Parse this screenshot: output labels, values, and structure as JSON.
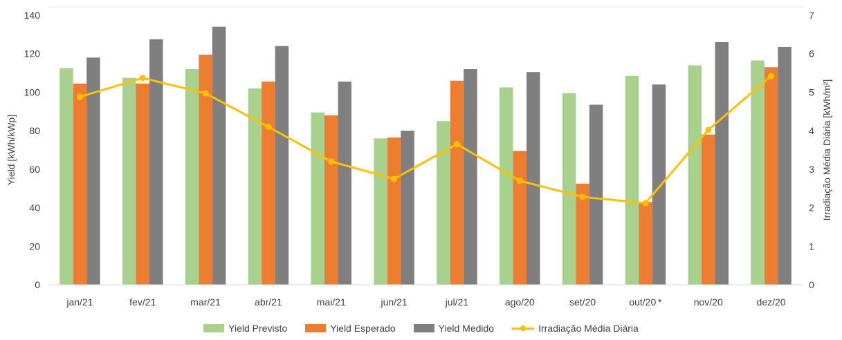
{
  "chart_data": {
    "type": "bar",
    "title": "",
    "categories": [
      "jan/21",
      "fev/21",
      "mar/21",
      "abr/21",
      "mai/21",
      "jun/21",
      "jul/21",
      "ago/20",
      "set/20",
      "out/20 *",
      "nov/20",
      "dez/20"
    ],
    "ylabel": "Yield [kWh/kWp]",
    "y2label": "Irradiação Média Diária [kWh/m²]",
    "ylim": [
      0,
      140
    ],
    "y2lim": [
      0,
      7
    ],
    "yticks": [
      "0",
      "20",
      "40",
      "60",
      "80",
      "100",
      "120",
      "140"
    ],
    "y2ticks": [
      "0",
      "1",
      "2",
      "3",
      "4",
      "5",
      "6",
      "7"
    ],
    "series": [
      {
        "name": "Yield Previsto",
        "type": "bar",
        "axis": "left",
        "color": "#a9d18e",
        "values": [
          112.5,
          107.5,
          112,
          102,
          89.5,
          76,
          85,
          102.5,
          99.5,
          108.5,
          114,
          116.5
        ]
      },
      {
        "name": "Yield Esperado",
        "type": "bar",
        "axis": "left",
        "color": "#ed7d31",
        "values": [
          104.5,
          104.5,
          119.5,
          105.5,
          88,
          76.5,
          106,
          69.5,
          52.5,
          43,
          78,
          113
        ]
      },
      {
        "name": "Yield Medido",
        "type": "bar",
        "axis": "left",
        "color": "#7f7f7f",
        "values": [
          118,
          127.5,
          134,
          124,
          105.5,
          80,
          112,
          110.5,
          93.5,
          104,
          126,
          123.5
        ]
      },
      {
        "name": "Irradiação Média Diária",
        "type": "line",
        "axis": "right",
        "color": "#ffc000",
        "values": [
          4.88,
          5.37,
          4.97,
          4.1,
          3.2,
          2.75,
          3.65,
          2.7,
          2.28,
          2.12,
          4.02,
          5.42
        ]
      }
    ],
    "grid": false,
    "legend_position": "bottom"
  }
}
